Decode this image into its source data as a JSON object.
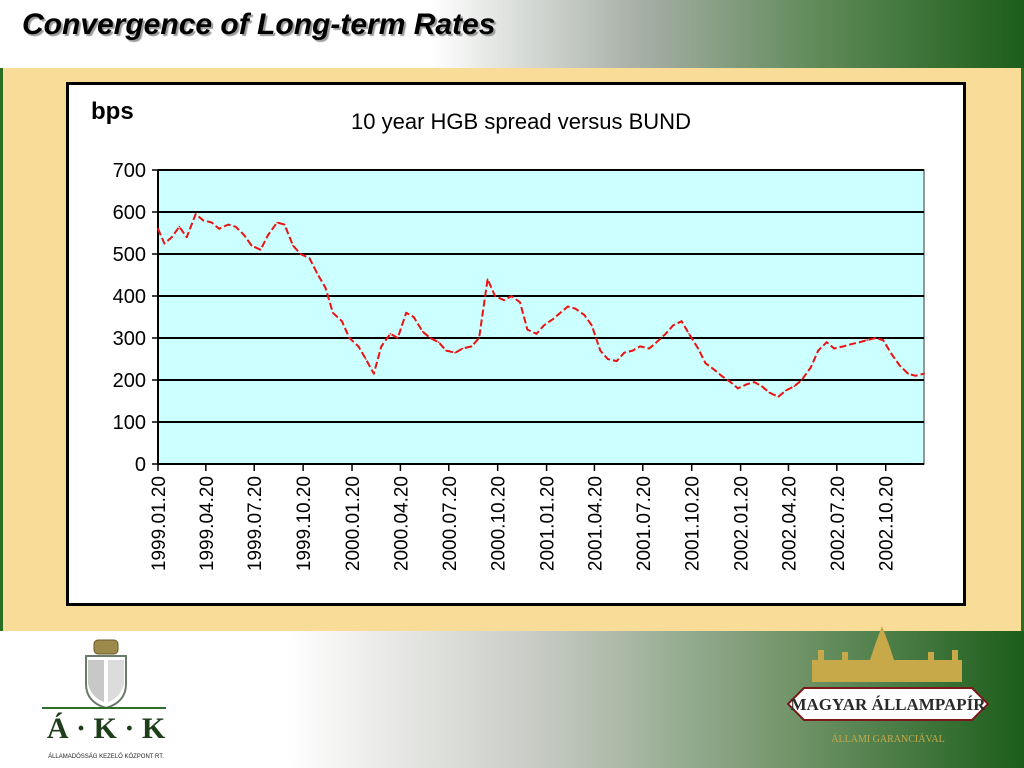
{
  "slide": {
    "title": "Convergence of Long-term Rates"
  },
  "chart_data": {
    "type": "line",
    "title": "10 year HGB spread versus BUND",
    "unit_label": "bps",
    "ylim": [
      0,
      700
    ],
    "yticks": [
      0,
      100,
      200,
      300,
      400,
      500,
      600,
      700
    ],
    "xlim": [
      "1999.01.20",
      "2002.12.31"
    ],
    "grid": true,
    "plot_background": "#ccffff",
    "series_color": "#ee1111",
    "categories": [
      "1999.01.20",
      "1999.04.20",
      "1999.07.20",
      "1999.10.20",
      "2000.01.20",
      "2000.04.20",
      "2000.07.20",
      "2000.10.20",
      "2001.01.20",
      "2001.04.20",
      "2001.07.20",
      "2001.10.20",
      "2002.01.20",
      "2002.04.20",
      "2002.07.20",
      "2002.10.20"
    ],
    "series": [
      {
        "x": [
          "1999.01.20",
          "1999.02.01",
          "1999.02.15",
          "1999.03.01",
          "1999.03.15",
          "1999.04.01",
          "1999.04.15",
          "1999.05.01",
          "1999.05.15",
          "1999.06.01",
          "1999.06.15",
          "1999.07.01",
          "1999.07.15",
          "1999.08.01",
          "1999.08.15",
          "1999.09.01",
          "1999.09.15",
          "1999.10.01",
          "1999.10.15",
          "1999.11.01",
          "1999.11.15",
          "1999.12.01",
          "1999.12.15",
          "2000.01.01",
          "2000.01.15",
          "2000.02.01",
          "2000.02.15",
          "2000.03.01",
          "2000.03.15",
          "2000.04.01",
          "2000.04.15",
          "2000.05.01",
          "2000.05.15",
          "2000.06.01",
          "2000.06.15",
          "2000.07.01",
          "2000.07.15",
          "2000.08.01",
          "2000.08.15",
          "2000.09.01",
          "2000.09.15",
          "2000.10.01",
          "2000.10.15",
          "2000.11.01",
          "2000.11.15",
          "2000.12.01",
          "2000.12.15",
          "2001.01.01",
          "2001.01.15",
          "2001.02.01",
          "2001.02.15",
          "2001.03.01",
          "2001.03.15",
          "2001.04.01",
          "2001.04.15",
          "2001.05.01",
          "2001.05.15",
          "2001.06.01",
          "2001.06.15",
          "2001.07.01",
          "2001.07.15",
          "2001.08.01",
          "2001.08.15",
          "2001.09.01",
          "2001.09.15",
          "2001.10.01",
          "2001.10.15",
          "2001.11.01",
          "2001.11.15",
          "2001.12.01",
          "2001.12.15",
          "2002.01.01",
          "2002.01.15",
          "2002.02.01",
          "2002.02.15",
          "2002.03.01",
          "2002.03.15",
          "2002.04.01",
          "2002.04.15",
          "2002.05.01",
          "2002.05.15",
          "2002.06.01",
          "2002.06.15",
          "2002.07.01",
          "2002.07.15",
          "2002.08.01",
          "2002.08.15",
          "2002.09.01",
          "2002.09.15",
          "2002.10.01",
          "2002.10.15",
          "2002.11.01",
          "2002.11.15",
          "2002.12.01",
          "2002.12.15",
          "2002.12.31"
        ],
        "values": [
          560,
          525,
          540,
          565,
          540,
          595,
          580,
          575,
          560,
          570,
          565,
          545,
          520,
          510,
          545,
          575,
          570,
          520,
          500,
          490,
          455,
          420,
          360,
          340,
          300,
          280,
          250,
          215,
          280,
          310,
          300,
          360,
          350,
          315,
          300,
          290,
          270,
          265,
          275,
          280,
          300,
          440,
          400,
          390,
          400,
          385,
          320,
          310,
          330,
          345,
          360,
          375,
          370,
          355,
          330,
          270,
          250,
          245,
          265,
          270,
          280,
          275,
          290,
          310,
          330,
          340,
          310,
          275,
          240,
          225,
          210,
          195,
          180,
          190,
          195,
          185,
          170,
          160,
          175,
          185,
          200,
          230,
          270,
          290,
          275,
          280,
          285,
          290,
          295,
          300,
          295,
          260,
          235,
          215,
          210,
          215
        ]
      }
    ]
  },
  "logos": {
    "left": {
      "name": "ÁKK",
      "letters": "Á · K · K",
      "caption": "ÁLLAMADÓSSÁG KEZELŐ KÖZPONT RT."
    },
    "right": {
      "banner": "MAGYAR ÁLLAMPAPÍR",
      "tagline": "ÁLLAMI GARANCIÁVAL"
    }
  }
}
